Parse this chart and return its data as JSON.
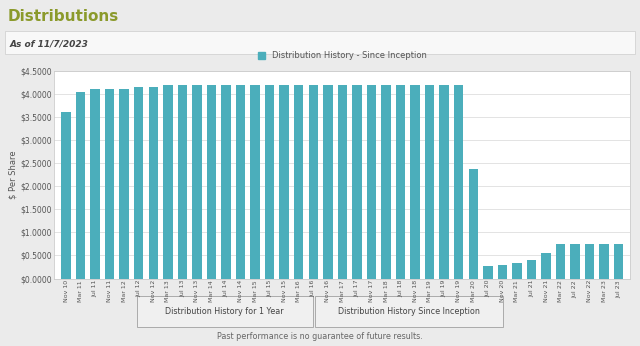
{
  "title": "Distributions",
  "subtitle": "As of 11/7/2023",
  "legend_label": "Distribution History - Since Inception",
  "ylabel": "$ Per Share",
  "footer": "Past performance is no guarantee of future results.",
  "btn1": "Distribution History for 1 Year",
  "btn2": "Distribution History Since Inception",
  "bar_color": "#4baebb",
  "bg_color": "#ebebeb",
  "chart_bg": "#ffffff",
  "chart_border": "#cccccc",
  "title_color": "#8b9a2b",
  "subtitle_bg": "#f5f5f5",
  "categories": [
    "Nov 10",
    "Mar 11",
    "Jul 11",
    "Nov 11",
    "Mar 12",
    "Jul 12",
    "Nov 12",
    "Mar 13",
    "Jul 13",
    "Nov 13",
    "Mar 14",
    "Jul 14",
    "Nov 14",
    "Mar 15",
    "Jul 15",
    "Nov 15",
    "Mar 16",
    "Jul 16",
    "Nov 16",
    "Mar 17",
    "Jul 17",
    "Nov 17",
    "Mar 18",
    "Jul 18",
    "Nov 18",
    "Mar 19",
    "Jul 19",
    "Nov 19",
    "Mar 20",
    "Jul 20",
    "Nov 20",
    "Mar 21",
    "Jul 21",
    "Nov 21",
    "Mar 22",
    "Jul 22",
    "Nov 22",
    "Mar 23",
    "Jul 23"
  ],
  "values": [
    3.6,
    4.05,
    4.1,
    4.1,
    4.1,
    4.15,
    4.15,
    4.2,
    4.2,
    4.2,
    4.2,
    4.2,
    4.2,
    4.2,
    4.2,
    4.2,
    4.2,
    4.2,
    4.2,
    4.2,
    4.2,
    4.2,
    4.2,
    4.2,
    4.2,
    4.2,
    4.2,
    4.2,
    2.38,
    0.28,
    0.3,
    0.33,
    0.4,
    0.55,
    0.75,
    0.75,
    0.75,
    0.75,
    0.75
  ],
  "ylim": [
    0.0,
    4.5
  ],
  "yticks": [
    0.0,
    0.5,
    1.0,
    1.5,
    2.0,
    2.5,
    3.0,
    3.5,
    4.0,
    4.5
  ]
}
